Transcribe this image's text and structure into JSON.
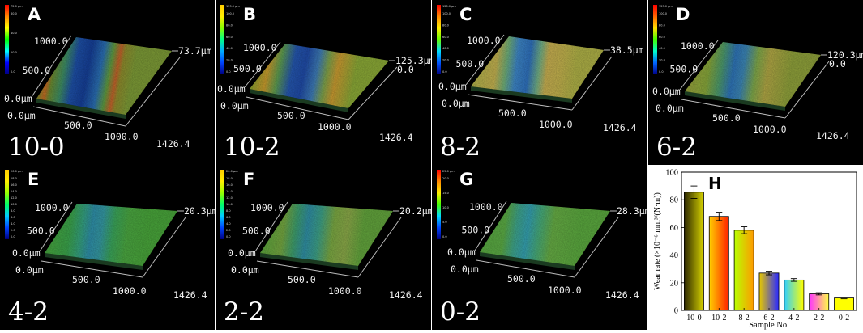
{
  "panels": [
    {
      "letter": "A",
      "sample": "10-0",
      "height_label": "73.7μm",
      "base_label": "",
      "y_ticks": [
        "1000.0",
        "500.0",
        "0.0μm"
      ],
      "x_ticks": [
        "0.0μm",
        "500.0",
        "1000.0",
        "1426.4"
      ],
      "scale_max": "72.0 μm",
      "scale_ticks": [
        "60.0",
        "40.0",
        "20.0",
        "0.0"
      ],
      "style": "red"
    },
    {
      "letter": "B",
      "sample": "10-2",
      "height_label": "125.3μm",
      "base_label": "0.0",
      "y_ticks": [
        "1000.0",
        "500.0",
        "0.0μm"
      ],
      "x_ticks": [
        "0.0μm",
        "500.0",
        "1000.0",
        "1426.4"
      ],
      "scale_max": "125.0 μm",
      "scale_ticks": [
        "100.0",
        "80.0",
        "60.0",
        "40.0",
        "20.0",
        "0.0"
      ],
      "style": "orange"
    },
    {
      "letter": "C",
      "sample": "8-2",
      "height_label": "38.5μm",
      "base_label": "",
      "y_ticks": [
        "1000.0",
        "500.0",
        "0.0μm"
      ],
      "x_ticks": [
        "0.0μm",
        "500.0",
        "1000.0",
        "1426.4"
      ],
      "scale_max": "120.0 μm",
      "scale_ticks": [
        "100.0",
        "80.0",
        "60.0",
        "40.0",
        "20.0",
        "0.0"
      ],
      "style": "khaki"
    },
    {
      "letter": "D",
      "sample": "6-2",
      "height_label": "120.3μm",
      "base_label": "0.0",
      "y_ticks": [
        "1000.0",
        "500.0",
        "0.0μm"
      ],
      "x_ticks": [
        "0.0μm",
        "500.0",
        "1000.0",
        "1426.4"
      ],
      "scale_max": "125.0 μm",
      "scale_ticks": [
        "100.0",
        "80.0",
        "60.0",
        "40.0",
        "20.0",
        "0.0"
      ],
      "style": "olive"
    },
    {
      "letter": "E",
      "sample": "4-2",
      "height_label": "20.3μm",
      "base_label": "",
      "y_ticks": [
        "1000.0",
        "500.0",
        "0.0μm"
      ],
      "x_ticks": [
        "0.0μm",
        "500.0",
        "1000.0",
        "1426.4"
      ],
      "scale_max": "20.0 μm",
      "scale_ticks": [
        "18.0",
        "16.0",
        "14.0",
        "12.0",
        "10.0",
        "8.0",
        "6.0",
        "4.0",
        "2.0",
        "0.0"
      ],
      "style": "green"
    },
    {
      "letter": "F",
      "sample": "2-2",
      "height_label": "20.2μm",
      "base_label": "",
      "y_ticks": [
        "1000.0",
        "500.0",
        "0.0μm"
      ],
      "x_ticks": [
        "0.0μm",
        "500.0",
        "1000.0",
        "1426.4"
      ],
      "scale_max": "20.0 μm",
      "scale_ticks": [
        "18.0",
        "16.0",
        "14.0",
        "12.0",
        "10.0",
        "8.0",
        "6.0",
        "4.0",
        "2.0",
        "0.0"
      ],
      "style": "green2"
    },
    {
      "letter": "G",
      "sample": "0-2",
      "height_label": "28.3μm",
      "base_label": "",
      "y_ticks": [
        "1000.0",
        "500.0",
        "0.0μm"
      ],
      "x_ticks": [
        "0.0μm",
        "500.0",
        "1000.0",
        "1426.4"
      ],
      "scale_max": "25.0 μm",
      "scale_ticks": [
        "20.0",
        "15.0",
        "10.0",
        "5.0",
        "0.0"
      ],
      "style": "green3"
    }
  ],
  "chart_data": {
    "type": "bar",
    "panel_letter": "H",
    "categories": [
      "10-0",
      "10-2",
      "8-2",
      "6-2",
      "4-2",
      "2-2",
      "0-2"
    ],
    "values": [
      85.5,
      68.0,
      58.0,
      27.0,
      22.0,
      12.0,
      9.0
    ],
    "errors": [
      4.5,
      3.0,
      2.5,
      1.3,
      1.0,
      0.8,
      0.6
    ],
    "bar_styles": [
      [
        "#2b2600",
        "#d8d400"
      ],
      [
        "#ffd000",
        "#ff2000"
      ],
      [
        "#b8ff00",
        "#ff9a00"
      ],
      [
        "#e6c800",
        "#2a2aff"
      ],
      [
        "#30d0ff",
        "#ffff00"
      ],
      [
        "#ff33ff",
        "#ffff44"
      ],
      [
        "#ffff00",
        "#ffff00"
      ]
    ],
    "xlabel": "Sample No.",
    "ylabel": "Wear rate (×10⁻⁶ mm³/(N·m))",
    "ylim": [
      0,
      100
    ],
    "yticks": [
      0,
      20,
      40,
      60,
      80,
      100
    ]
  }
}
